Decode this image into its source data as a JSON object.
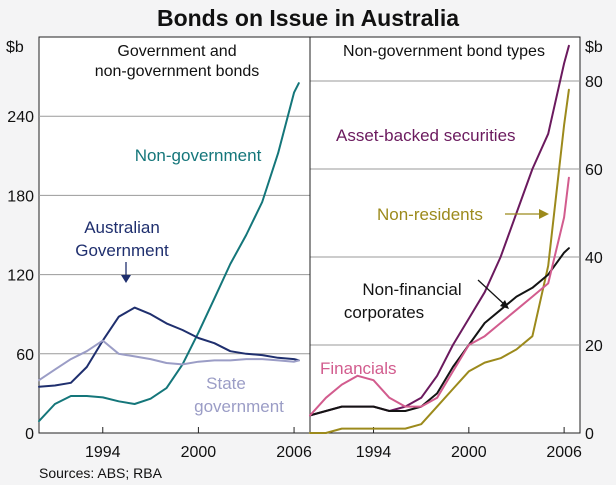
{
  "title": "Bonds on Issue in Australia",
  "source": "Sources: ABS; RBA",
  "colors": {
    "non_government": "#14767a",
    "australian_government": "#1f2f6e",
    "state_government": "#9b9dc6",
    "asset_backed": "#6b1a5e",
    "non_residents": "#9c8a1c",
    "non_financial": "#141414",
    "financials": "#d25c8e",
    "grid": "#9a9a9a",
    "panel": "#ffffff"
  },
  "chart_data": [
    {
      "type": "line",
      "panel_title": "Government and non-government bonds",
      "y_unit": "$b",
      "ylim": [
        0,
        300
      ],
      "yticks": [
        0,
        60,
        120,
        180,
        240
      ],
      "xlim": [
        1990.0,
        2007.0
      ],
      "xticks": [
        "1994",
        "2000",
        "2006"
      ],
      "series": [
        {
          "name": "Non-government",
          "color_key": "non_government",
          "x": [
            1990.0,
            1991.0,
            1992.0,
            1993.0,
            1994.0,
            1995.0,
            1996.0,
            1997.0,
            1998.0,
            1999.0,
            2000.0,
            2001.0,
            2002.0,
            2003.0,
            2004.0,
            2005.0,
            2006.0,
            2006.3
          ],
          "y": [
            9,
            22,
            28,
            28,
            27,
            24,
            22,
            26,
            34,
            52,
            76,
            102,
            128,
            150,
            175,
            212,
            258,
            265
          ]
        },
        {
          "name": "Australian Government",
          "color_key": "australian_government",
          "x": [
            1990.0,
            1991.0,
            1992.0,
            1993.0,
            1994.0,
            1995.0,
            1996.0,
            1997.0,
            1998.0,
            1999.0,
            2000.0,
            2001.0,
            2002.0,
            2003.0,
            2004.0,
            2005.0,
            2006.0,
            2006.3
          ],
          "y": [
            35,
            36,
            38,
            50,
            70,
            88,
            95,
            90,
            83,
            78,
            72,
            68,
            62,
            60,
            59,
            57,
            56,
            55
          ]
        },
        {
          "name": "State government",
          "color_key": "state_government",
          "x": [
            1990.0,
            1991.0,
            1992.0,
            1993.0,
            1994.0,
            1995.0,
            1996.0,
            1997.0,
            1998.0,
            1999.0,
            2000.0,
            2001.0,
            2002.0,
            2003.0,
            2004.0,
            2005.0,
            2006.0,
            2006.3
          ],
          "y": [
            40,
            48,
            56,
            62,
            70,
            60,
            58,
            56,
            53,
            52,
            54,
            55,
            55,
            56,
            56,
            55,
            54,
            55
          ]
        }
      ],
      "labels": [
        {
          "text": "Non-government",
          "color_key": "non_government"
        },
        {
          "lines": [
            "Australian",
            "Government"
          ],
          "color_key": "australian_government"
        },
        {
          "lines": [
            "State",
            "government"
          ],
          "color_key": "state_government"
        }
      ]
    },
    {
      "type": "line",
      "panel_title": "Non-government bond types",
      "y_unit": "$b",
      "ylim": [
        0,
        90
      ],
      "yticks": [
        0,
        20,
        40,
        60,
        80
      ],
      "xlim": [
        1990.0,
        2007.0
      ],
      "xticks": [
        "1994",
        "2000",
        "2006"
      ],
      "series": [
        {
          "name": "Asset-backed securities",
          "color_key": "asset_backed",
          "x": [
            1990.0,
            1991.0,
            1992.0,
            1993.0,
            1994.0,
            1995.0,
            1996.0,
            1997.0,
            1998.0,
            1999.0,
            2000.0,
            2001.0,
            2002.0,
            2003.0,
            2004.0,
            2005.0,
            2006.0,
            2006.3
          ],
          "y": [
            4,
            5,
            6,
            6,
            6,
            5,
            6,
            8,
            13,
            20,
            26,
            32,
            40,
            50,
            60,
            68,
            84,
            88
          ]
        },
        {
          "name": "Non-residents",
          "color_key": "non_residents",
          "x": [
            1990.0,
            1991.0,
            1992.0,
            1993.0,
            1994.0,
            1995.0,
            1996.0,
            1997.0,
            1998.0,
            1999.0,
            2000.0,
            2001.0,
            2002.0,
            2003.0,
            2004.0,
            2005.0,
            2006.0,
            2006.3
          ],
          "y": [
            0,
            0,
            1,
            1,
            1,
            1,
            1,
            2,
            6,
            10,
            14,
            16,
            17,
            19,
            22,
            38,
            70,
            78
          ]
        },
        {
          "name": "Non-financial corporates",
          "color_key": "non_financial",
          "x": [
            1990.0,
            1991.0,
            1992.0,
            1993.0,
            1994.0,
            1995.0,
            1996.0,
            1997.0,
            1998.0,
            1999.0,
            2000.0,
            2001.0,
            2002.0,
            2003.0,
            2004.0,
            2005.0,
            2006.0,
            2006.3
          ],
          "y": [
            4,
            5,
            6,
            6,
            6,
            5,
            5,
            6,
            9,
            15,
            20,
            25,
            28,
            31,
            33,
            36,
            41,
            42
          ]
        },
        {
          "name": "Financials",
          "color_key": "financials",
          "x": [
            1990.0,
            1991.0,
            1992.0,
            1993.0,
            1994.0,
            1995.0,
            1996.0,
            1997.0,
            1998.0,
            1999.0,
            2000.0,
            2001.0,
            2002.0,
            2003.0,
            2004.0,
            2005.0,
            2006.0,
            2006.3
          ],
          "y": [
            4,
            8,
            11,
            13,
            12,
            8,
            6,
            6,
            8,
            14,
            20,
            22,
            25,
            28,
            31,
            34,
            49,
            58
          ]
        }
      ],
      "labels": [
        {
          "text": "Asset-backed securities",
          "color_key": "asset_backed"
        },
        {
          "text": "Non-residents",
          "color_key": "non_residents"
        },
        {
          "lines": [
            "Non-financial",
            "corporates"
          ],
          "color_key": "non_financial"
        },
        {
          "text": "Financials",
          "color_key": "financials"
        }
      ]
    }
  ]
}
